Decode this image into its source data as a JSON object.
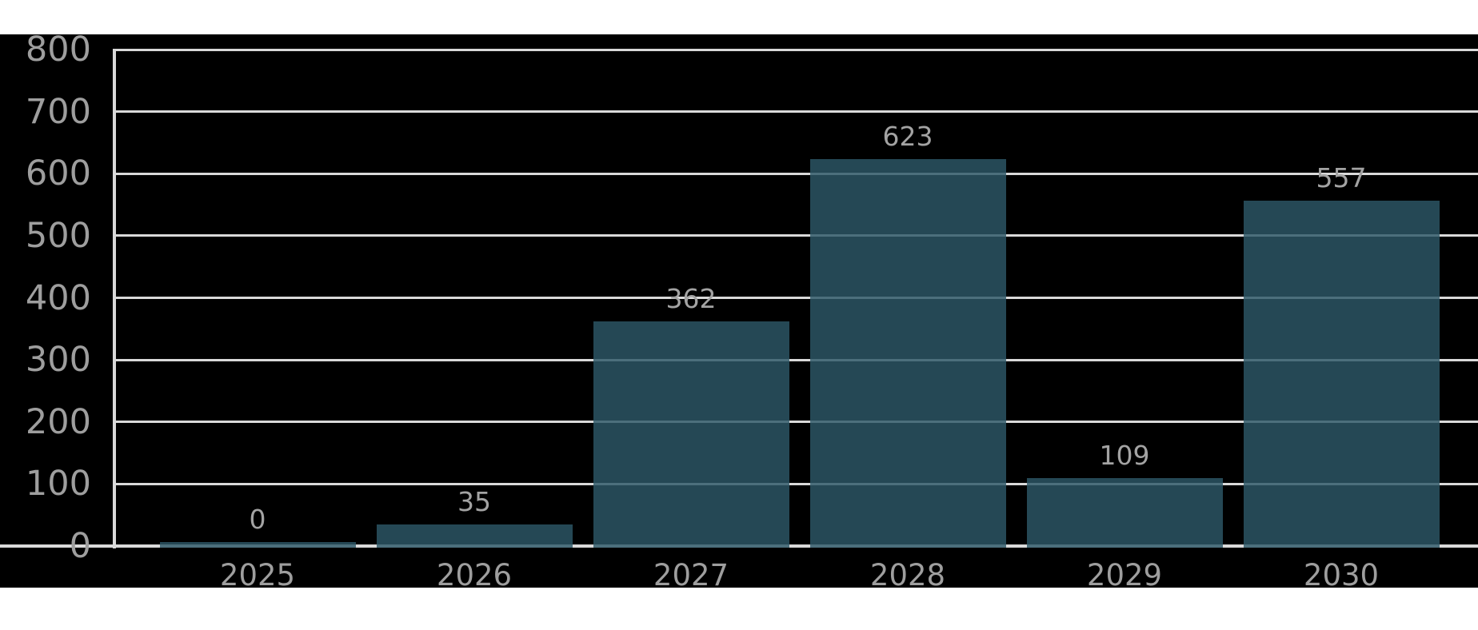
{
  "chart_data": {
    "type": "bar",
    "categories": [
      "2025",
      "2026",
      "2027",
      "2028",
      "2029",
      "2030"
    ],
    "values": [
      0,
      35,
      362,
      623,
      109,
      557
    ],
    "value_labels": [
      "0",
      "35",
      "362",
      "623",
      "109",
      "557"
    ],
    "title": "",
    "xlabel": "",
    "ylabel": "",
    "ylim": [
      0,
      800
    ],
    "yticks": [
      0,
      100,
      200,
      300,
      400,
      500,
      600,
      700,
      800
    ],
    "grid": true,
    "legend": false,
    "colors": {
      "panel_background": "#000000",
      "page_background": "#ffffff",
      "bar": "rgba(45, 88, 104, 0.82)",
      "gridline": "#d9d9d9",
      "axis_line": "#d9d9d9",
      "tick_label": "#9e9e9e",
      "value_label": "#a3a3a3"
    }
  }
}
